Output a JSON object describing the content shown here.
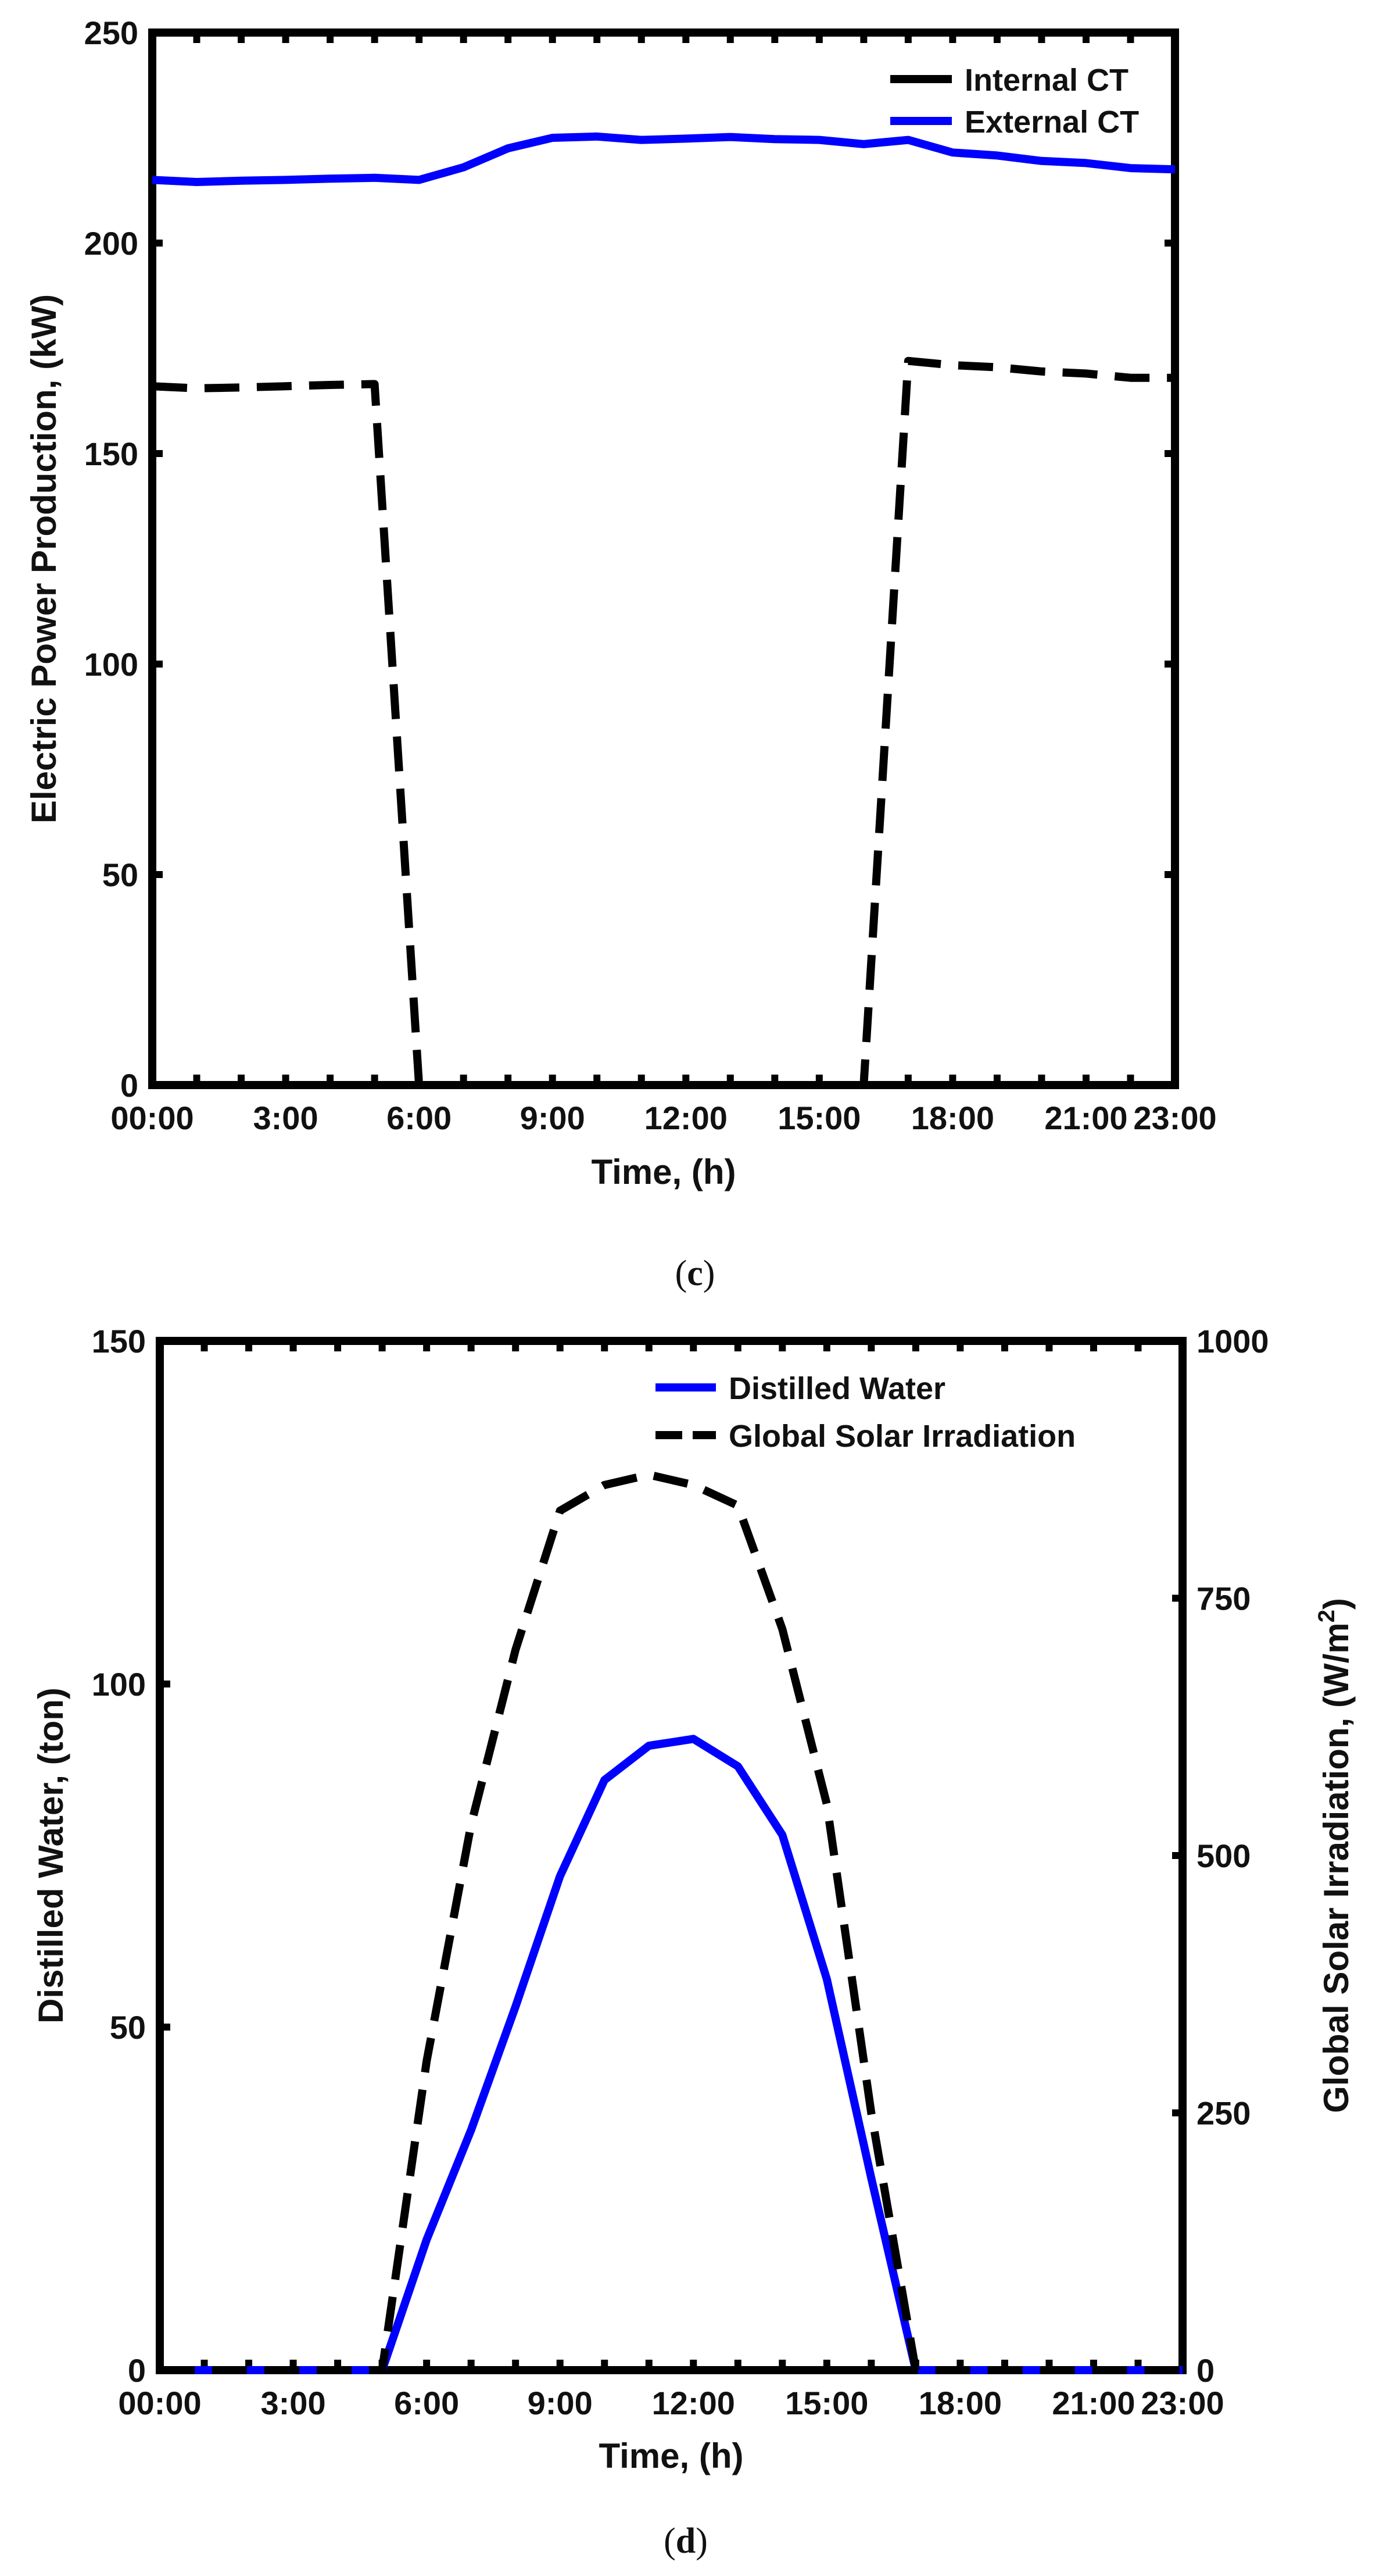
{
  "chart_data": [
    {
      "type": "line",
      "panel": "c",
      "caption_letter": "c",
      "xlabel": "Time, (h)",
      "ylabel": "Electric Power Production, (kW)",
      "ylim": [
        0,
        250
      ],
      "xlim": [
        0,
        23
      ],
      "x_ticks": [
        0,
        3,
        6,
        9,
        12,
        15,
        18,
        21,
        23
      ],
      "x_tick_labels": [
        "00:00",
        "3:00",
        "6:00",
        "9:00",
        "12:00",
        "15:00",
        "18:00",
        "21:00",
        "23:00"
      ],
      "y_ticks": [
        0,
        50,
        100,
        150,
        200,
        250
      ],
      "y_tick_labels": [
        "0",
        "50",
        "100",
        "150",
        "200",
        "250"
      ],
      "legend_position": "top-right",
      "series": [
        {
          "name": "Internal CT",
          "color": "#000000",
          "style": "dashed",
          "x": [
            0,
            1,
            2,
            3,
            4,
            5,
            6,
            7,
            8,
            9,
            10,
            11,
            12,
            13,
            14,
            15,
            16,
            17,
            18,
            19,
            20,
            21,
            22,
            23
          ],
          "values": [
            166,
            165.5,
            165.7,
            166,
            166.3,
            166.5,
            0,
            0,
            0,
            0,
            0,
            0,
            0,
            0,
            0,
            0,
            0,
            172,
            171,
            170.5,
            169.5,
            169,
            168,
            168
          ]
        },
        {
          "name": "External CT",
          "color": "#0000ff",
          "style": "solid",
          "x": [
            0,
            1,
            2,
            3,
            4,
            5,
            6,
            7,
            8,
            9,
            10,
            11,
            12,
            13,
            14,
            15,
            16,
            17,
            18,
            19,
            20,
            21,
            22,
            23
          ],
          "values": [
            215,
            214.5,
            214.8,
            215,
            215.3,
            215.5,
            215,
            218,
            222.5,
            225,
            225.3,
            224.5,
            224.8,
            225.2,
            224.7,
            224.5,
            223.5,
            224.5,
            221.5,
            220.8,
            219.5,
            219,
            217.8,
            217.5
          ]
        }
      ]
    },
    {
      "type": "line",
      "panel": "d",
      "caption_letter": "d",
      "xlabel": "Time, (h)",
      "ylabel": "Distilled Water, (ton)",
      "ylabel_right": "Global Solar Irradiation, (W/m",
      "ylabel_right_superscript": "2",
      "ylabel_right_close": ")",
      "ylim": [
        0,
        150
      ],
      "ylim_right": [
        0,
        1000
      ],
      "xlim": [
        0,
        23
      ],
      "x_ticks": [
        0,
        3,
        6,
        9,
        12,
        15,
        18,
        21,
        23
      ],
      "x_tick_labels": [
        "00:00",
        "3:00",
        "6:00",
        "9:00",
        "12:00",
        "15:00",
        "18:00",
        "21:00",
        "23:00"
      ],
      "y_ticks": [
        0,
        50,
        100,
        150
      ],
      "y_tick_labels": [
        "0",
        "50",
        "100",
        "150"
      ],
      "y_right_ticks": [
        0,
        250,
        500,
        750,
        1000
      ],
      "y_right_tick_labels": [
        "0",
        "250",
        "500",
        "750",
        "1000"
      ],
      "legend_position": "top-right",
      "series": [
        {
          "name": "Distilled Water",
          "axis": "left",
          "color": "#0000ff",
          "style": "solid",
          "x": [
            0,
            1,
            2,
            3,
            4,
            5,
            6,
            7,
            8,
            9,
            10,
            11,
            12,
            13,
            14,
            15,
            16,
            17,
            18,
            19,
            20,
            21,
            22,
            23
          ],
          "values": [
            0,
            0,
            0,
            0,
            0,
            0,
            19,
            35,
            53,
            72,
            86,
            91,
            92,
            88,
            78,
            57,
            28,
            0,
            0,
            0,
            0,
            0,
            0,
            0
          ]
        },
        {
          "name": "Global Solar Irradiation",
          "axis": "right",
          "color": "#000000",
          "style": "dashed",
          "x": [
            0,
            1,
            2,
            3,
            4,
            5,
            6,
            7,
            8,
            9,
            10,
            11,
            12,
            13,
            14,
            15,
            16,
            17,
            18,
            19,
            20,
            21,
            22,
            23
          ],
          "values": [
            0,
            0,
            0,
            0,
            0,
            0,
            300,
            530,
            700,
            835,
            860,
            870,
            860,
            840,
            720,
            550,
            250,
            0,
            0,
            0,
            0,
            0,
            0,
            0
          ]
        }
      ]
    }
  ]
}
